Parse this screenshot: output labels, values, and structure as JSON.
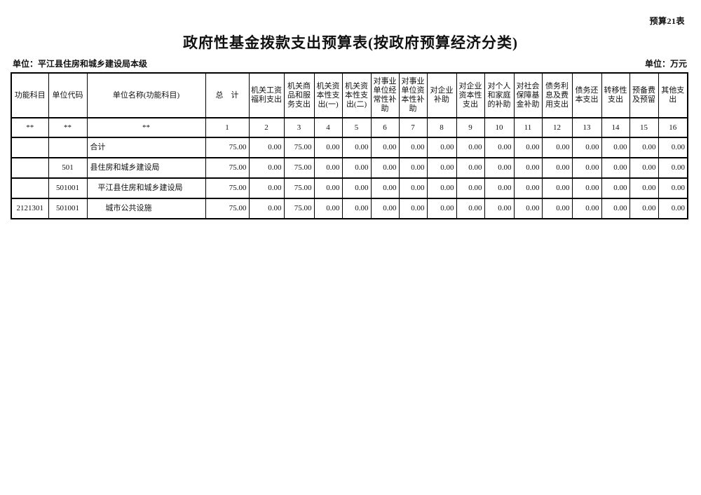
{
  "page": {
    "table_code": "预算21表",
    "title": "政府性基金拨款支出预算表(按政府预算经济分类)",
    "unit_name": "单位：平江县住房和城乡建设局本级",
    "unit_currency": "单位：万元"
  },
  "table": {
    "columns": [
      "功能科目",
      "单位代码",
      "单位名称(功能科目)",
      "总　计",
      "机关工资福利支出",
      "机关商品和服务支出",
      "机关资本性支出(一)",
      "机关资本性支出(二)",
      "对事业单位经常性补助",
      "对事业单位资本性补助",
      "对企业补助",
      "对企业资本性支出",
      "对个人和家庭的补助",
      "对社会保障基金补助",
      "债务利息及费用支出",
      "债务还本支出",
      "转移性支出",
      "预备费及预留",
      "其他支出"
    ],
    "code_row": [
      "**",
      "**",
      "**",
      "1",
      "2",
      "3",
      "4",
      "5",
      "6",
      "7",
      "8",
      "9",
      "10",
      "11",
      "12",
      "13",
      "14",
      "15",
      "16"
    ],
    "rows": [
      {
        "func_code": "",
        "unit_code": "",
        "name": "合计",
        "indent": 0,
        "values": [
          "75.00",
          "0.00",
          "75.00",
          "0.00",
          "0.00",
          "0.00",
          "0.00",
          "0.00",
          "0.00",
          "0.00",
          "0.00",
          "0.00",
          "0.00",
          "0.00",
          "0.00",
          "0.00"
        ]
      },
      {
        "func_code": "",
        "unit_code": "501",
        "name": "县住房和城乡建设局",
        "indent": 0,
        "values": [
          "75.00",
          "0.00",
          "75.00",
          "0.00",
          "0.00",
          "0.00",
          "0.00",
          "0.00",
          "0.00",
          "0.00",
          "0.00",
          "0.00",
          "0.00",
          "0.00",
          "0.00",
          "0.00"
        ]
      },
      {
        "func_code": "",
        "unit_code": "501001",
        "name": "平江县住房和城乡建设局",
        "indent": 1,
        "values": [
          "75.00",
          "0.00",
          "75.00",
          "0.00",
          "0.00",
          "0.00",
          "0.00",
          "0.00",
          "0.00",
          "0.00",
          "0.00",
          "0.00",
          "0.00",
          "0.00",
          "0.00",
          "0.00"
        ]
      },
      {
        "func_code": "2121301",
        "unit_code": "501001",
        "name": "城市公共设施",
        "indent": 2,
        "values": [
          "75.00",
          "0.00",
          "75.00",
          "0.00",
          "0.00",
          "0.00",
          "0.00",
          "0.00",
          "0.00",
          "0.00",
          "0.00",
          "0.00",
          "0.00",
          "0.00",
          "0.00",
          "0.00"
        ]
      }
    ]
  }
}
